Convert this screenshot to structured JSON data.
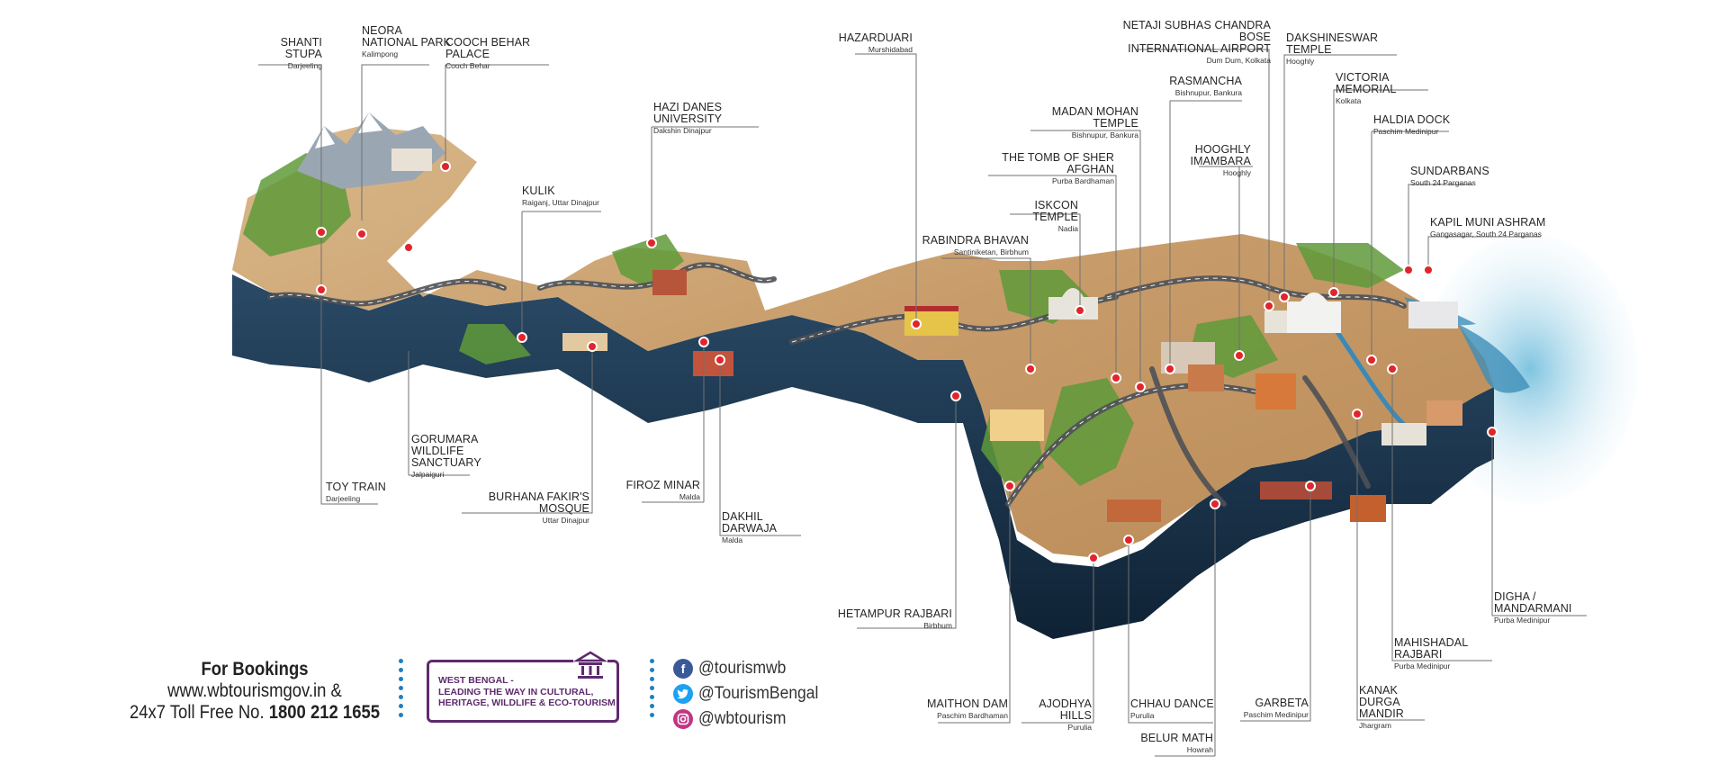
{
  "colors": {
    "slab": "#1f3a52",
    "slab_dark": "#122638",
    "land": "#c9a374",
    "green": "#5f9a3a",
    "road": "#55585d",
    "marker": "#e0252b",
    "leader": "#6d6d6d",
    "brand_purple": "#5e2a6e",
    "dot_blue": "#1e7fc1"
  },
  "labels": [
    {
      "id": "shanti-stupa",
      "name": "SHANTI STUPA",
      "sub": "Darjeeling"
    },
    {
      "id": "neora",
      "name": "NEORA\nNATIONAL PARK",
      "sub": "Kalimpong"
    },
    {
      "id": "cooch-behar",
      "name": "COOCH BEHAR PALACE",
      "sub": "Cooch Behar"
    },
    {
      "id": "kulik",
      "name": "KULIK",
      "sub": "Raiganj, Uttar Dinajpur"
    },
    {
      "id": "hazi-danes",
      "name": "HAZI DANES UNIVERSITY",
      "sub": "Dakshin Dinajpur"
    },
    {
      "id": "hazarduari",
      "name": "HAZARDUARI",
      "sub": "Murshidabad"
    },
    {
      "id": "netaji",
      "name": "NETAJI SUBHAS CHANDRA BOSE\nINTERNATIONAL AIRPORT",
      "sub": "Dum Dum, Kolkata"
    },
    {
      "id": "dakshineswar",
      "name": "DAKSHINESWAR TEMPLE",
      "sub": "Hooghly"
    },
    {
      "id": "rasmancha",
      "name": "RASMANCHA",
      "sub": "Bishnupur, Bankura"
    },
    {
      "id": "victoria",
      "name": "VICTORIA MEMORIAL",
      "sub": "Kolkata"
    },
    {
      "id": "madan-mohan",
      "name": "MADAN MOHAN TEMPLE",
      "sub": "Bishnupur, Bankura"
    },
    {
      "id": "haldia",
      "name": "HALDIA DOCK",
      "sub": "Paschim Medinipur"
    },
    {
      "id": "hooghly-imambara",
      "name": "HOOGHLY\nIMAMBARA",
      "sub": "Hooghly"
    },
    {
      "id": "sher-afghan",
      "name": "THE TOMB OF SHER AFGHAN",
      "sub": "Purba Bardhaman"
    },
    {
      "id": "sundarbans",
      "name": "SUNDARBANS",
      "sub": "South 24 Parganas"
    },
    {
      "id": "iskcon",
      "name": "ISKCON TEMPLE",
      "sub": "Nadia"
    },
    {
      "id": "kapil-muni",
      "name": "KAPIL MUNI ASHRAM",
      "sub": "Gangasagar, South 24 Parganas"
    },
    {
      "id": "rabindra",
      "name": "RABINDRA BHAVAN",
      "sub": "Santiniketan, Birbhum"
    },
    {
      "id": "gorumara",
      "name": "GORUMARA WILDLIFE\nSANCTUARY",
      "sub": "Jalpaiguri"
    },
    {
      "id": "toy-train",
      "name": "TOY TRAIN",
      "sub": "Darjeeling"
    },
    {
      "id": "burhana",
      "name": "BURHANA FAKIR'S MOSQUE",
      "sub": "Uttar Dinajpur"
    },
    {
      "id": "firoz",
      "name": "FIROZ MINAR",
      "sub": "Malda"
    },
    {
      "id": "dakhil",
      "name": "DAKHIL DARWAJA",
      "sub": "Malda"
    },
    {
      "id": "hetampur",
      "name": "HETAMPUR RAJBARI",
      "sub": "Birbhum"
    },
    {
      "id": "digha",
      "name": "DIGHA / MANDARMANI",
      "sub": "Purba Medinipur"
    },
    {
      "id": "mahishadal",
      "name": "MAHISHADAL RAJBARI",
      "sub": "Purba Medinipur"
    },
    {
      "id": "kanak-durga",
      "name": "KANAK DURGA\nMANDIR",
      "sub": "Jhargram"
    },
    {
      "id": "garbeta",
      "name": "GARBETA",
      "sub": "Paschim Medinipur"
    },
    {
      "id": "chhau",
      "name": "CHHAU DANCE",
      "sub": "Purulia"
    },
    {
      "id": "belur",
      "name": "BELUR MATH",
      "sub": "Howrah"
    },
    {
      "id": "ajodhya",
      "name": "AJODHYA HILLS",
      "sub": "Purulia"
    },
    {
      "id": "maithon",
      "name": "MAITHON DAM",
      "sub": "Paschim Bardhaman"
    }
  ],
  "bookings": {
    "title": "For Bookings",
    "website": "www.wbtourismgov.in &",
    "tollfree_prefix": "24x7 Toll Free No.",
    "tollfree_number": "1800 212 1655"
  },
  "tagline": "WEST BENGAL -\nLEADING THE WAY IN CULTURAL,\nHERITAGE, WILDLIFE & ECO-TOURISM",
  "social": [
    {
      "network": "facebook",
      "icon": "facebook-icon",
      "color": "#3b5998",
      "handle": "@tourismwb"
    },
    {
      "network": "twitter",
      "icon": "twitter-icon",
      "color": "#1da1f2",
      "handle": "@TourismBengal"
    },
    {
      "network": "instagram",
      "icon": "instagram-icon",
      "color": "#c13584",
      "handle": "@wbtourism"
    }
  ]
}
